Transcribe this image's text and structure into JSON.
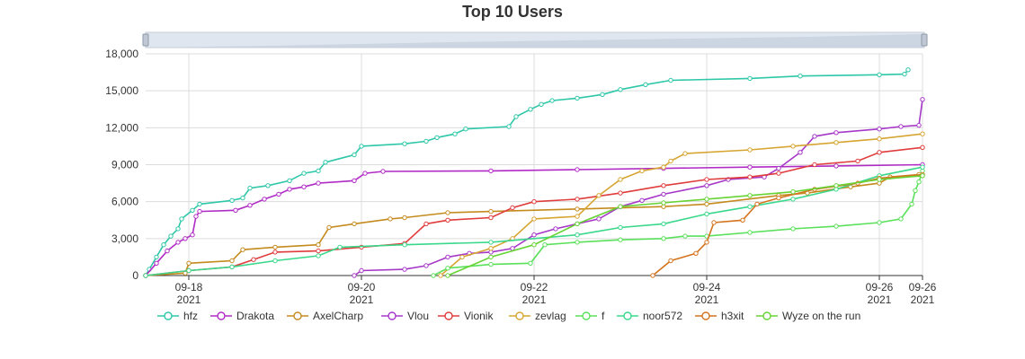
{
  "chart_data": {
    "type": "line",
    "title": "Top 10 Users",
    "xlabel": "",
    "ylabel": "",
    "x_axis_type": "time",
    "xlim": [
      "2021-09-17T12:00",
      "2021-09-26T12:00"
    ],
    "ylim": [
      0,
      18000
    ],
    "y_ticks": [
      0,
      3000,
      6000,
      9000,
      12000,
      15000,
      18000
    ],
    "y_tick_labels": [
      "0",
      "3,000",
      "6,000",
      "9,000",
      "12,000",
      "15,000",
      "18,000"
    ],
    "x_ticks": [
      {
        "at": "2021-09-18T00:00",
        "label": "09-18",
        "year": "2021"
      },
      {
        "at": "2021-09-20T00:00",
        "label": "09-20",
        "year": "2021"
      },
      {
        "at": "2021-09-22T00:00",
        "label": "09-22",
        "year": "2021"
      },
      {
        "at": "2021-09-24T00:00",
        "label": "09-24",
        "year": "2021"
      },
      {
        "at": "2021-09-26T00:00",
        "label": "09-26",
        "year": "2021"
      },
      {
        "at": "2021-09-26T12:00",
        "label": "09-26",
        "year": "2021"
      }
    ],
    "grid": true,
    "legend_position": "bottom",
    "has_zoom_slider": true,
    "series": [
      {
        "name": "hfz",
        "color": "#2ec7a8",
        "points": [
          [
            "2021-09-17T12:00",
            0
          ],
          [
            "2021-09-17T13:00",
            500
          ],
          [
            "2021-09-17T15:00",
            1500
          ],
          [
            "2021-09-17T17:00",
            2500
          ],
          [
            "2021-09-17T19:00",
            3200
          ],
          [
            "2021-09-17T21:00",
            3800
          ],
          [
            "2021-09-17T22:00",
            4600
          ],
          [
            "2021-09-18T01:00",
            5300
          ],
          [
            "2021-09-18T03:00",
            5800
          ],
          [
            "2021-09-18T12:00",
            6100
          ],
          [
            "2021-09-18T15:00",
            6300
          ],
          [
            "2021-09-18T17:00",
            7100
          ],
          [
            "2021-09-18T22:00",
            7300
          ],
          [
            "2021-09-19T04:00",
            7700
          ],
          [
            "2021-09-19T08:00",
            8300
          ],
          [
            "2021-09-19T12:00",
            8500
          ],
          [
            "2021-09-19T14:00",
            9200
          ],
          [
            "2021-09-19T22:00",
            9800
          ],
          [
            "2021-09-20T00:00",
            10500
          ],
          [
            "2021-09-20T12:00",
            10700
          ],
          [
            "2021-09-20T18:00",
            10900
          ],
          [
            "2021-09-20T21:00",
            11200
          ],
          [
            "2021-09-21T02:00",
            11500
          ],
          [
            "2021-09-21T05:00",
            11900
          ],
          [
            "2021-09-21T17:00",
            12100
          ],
          [
            "2021-09-21T19:00",
            12900
          ],
          [
            "2021-09-21T23:00",
            13500
          ],
          [
            "2021-09-22T02:00",
            13900
          ],
          [
            "2021-09-22T05:00",
            14200
          ],
          [
            "2021-09-22T12:00",
            14400
          ],
          [
            "2021-09-22T19:00",
            14700
          ],
          [
            "2021-09-23T00:00",
            15100
          ],
          [
            "2021-09-23T07:00",
            15500
          ],
          [
            "2021-09-23T14:00",
            15850
          ],
          [
            "2021-09-24T12:00",
            16000
          ],
          [
            "2021-09-25T02:00",
            16200
          ],
          [
            "2021-09-26T00:00",
            16300
          ],
          [
            "2021-09-26T07:00",
            16350
          ],
          [
            "2021-09-26T08:00",
            16700
          ]
        ]
      },
      {
        "name": "Drakota",
        "color": "#b02bc5",
        "points": [
          [
            "2021-09-17T12:00",
            0
          ],
          [
            "2021-09-17T15:00",
            1000
          ],
          [
            "2021-09-17T18:00",
            2000
          ],
          [
            "2021-09-17T21:00",
            2700
          ],
          [
            "2021-09-17T23:00",
            3000
          ],
          [
            "2021-09-18T01:00",
            3300
          ],
          [
            "2021-09-18T02:00",
            4800
          ],
          [
            "2021-09-18T03:00",
            5200
          ],
          [
            "2021-09-18T13:00",
            5300
          ],
          [
            "2021-09-18T17:00",
            5700
          ],
          [
            "2021-09-18T21:00",
            6200
          ],
          [
            "2021-09-19T01:00",
            6600
          ],
          [
            "2021-09-19T04:00",
            7000
          ],
          [
            "2021-09-19T08:00",
            7200
          ],
          [
            "2021-09-19T12:00",
            7500
          ],
          [
            "2021-09-19T22:00",
            7700
          ],
          [
            "2021-09-20T01:00",
            8300
          ],
          [
            "2021-09-20T06:00",
            8450
          ],
          [
            "2021-09-21T12:00",
            8500
          ],
          [
            "2021-09-22T12:00",
            8600
          ],
          [
            "2021-09-23T12:00",
            8700
          ],
          [
            "2021-09-24T12:00",
            8800
          ],
          [
            "2021-09-25T12:00",
            8900
          ],
          [
            "2021-09-26T12:00",
            9000
          ]
        ]
      },
      {
        "name": "AxelCharp",
        "color": "#c48b1e",
        "points": [
          [
            "2021-09-17T12:00",
            0
          ],
          [
            "2021-09-17T23:00",
            200
          ],
          [
            "2021-09-18T00:00",
            1000
          ],
          [
            "2021-09-18T12:00",
            1200
          ],
          [
            "2021-09-18T15:00",
            2100
          ],
          [
            "2021-09-19T00:00",
            2300
          ],
          [
            "2021-09-19T12:00",
            2500
          ],
          [
            "2021-09-19T15:00",
            3900
          ],
          [
            "2021-09-19T22:00",
            4200
          ],
          [
            "2021-09-20T08:00",
            4600
          ],
          [
            "2021-09-20T12:00",
            4700
          ],
          [
            "2021-09-21T00:00",
            5100
          ],
          [
            "2021-09-21T12:00",
            5200
          ],
          [
            "2021-09-22T12:00",
            5400
          ],
          [
            "2021-09-23T12:00",
            5600
          ],
          [
            "2021-09-24T00:00",
            5800
          ],
          [
            "2021-09-24T20:00",
            6500
          ],
          [
            "2021-09-25T04:00",
            6700
          ],
          [
            "2021-09-25T16:00",
            7200
          ],
          [
            "2021-09-26T00:00",
            7500
          ],
          [
            "2021-09-26T03:00",
            8000
          ],
          [
            "2021-09-26T11:00",
            8200
          ]
        ]
      },
      {
        "name": "Vlou",
        "color": "#a638c8",
        "points": [
          [
            "2021-09-19T22:00",
            0
          ],
          [
            "2021-09-20T00:00",
            400
          ],
          [
            "2021-09-20T12:00",
            500
          ],
          [
            "2021-09-20T18:00",
            800
          ],
          [
            "2021-09-21T00:00",
            1500
          ],
          [
            "2021-09-21T06:00",
            1800
          ],
          [
            "2021-09-21T12:00",
            1900
          ],
          [
            "2021-09-21T18:00",
            2200
          ],
          [
            "2021-09-22T00:00",
            3300
          ],
          [
            "2021-09-22T06:00",
            3800
          ],
          [
            "2021-09-22T12:00",
            4200
          ],
          [
            "2021-09-22T18:00",
            4600
          ],
          [
            "2021-09-23T00:00",
            5600
          ],
          [
            "2021-09-23T06:00",
            6100
          ],
          [
            "2021-09-23T12:00",
            6600
          ],
          [
            "2021-09-24T00:00",
            7300
          ],
          [
            "2021-09-24T06:00",
            7800
          ],
          [
            "2021-09-24T16:00",
            8000
          ],
          [
            "2021-09-24T20:00",
            8700
          ],
          [
            "2021-09-25T02:00",
            10000
          ],
          [
            "2021-09-25T06:00",
            11300
          ],
          [
            "2021-09-25T12:00",
            11600
          ],
          [
            "2021-09-26T00:00",
            11900
          ],
          [
            "2021-09-26T06:00",
            12100
          ],
          [
            "2021-09-26T11:00",
            12200
          ],
          [
            "2021-09-26T12:00",
            14300
          ]
        ]
      },
      {
        "name": "Vionik",
        "color": "#e03c3c",
        "points": [
          [
            "2021-09-17T12:00",
            0
          ],
          [
            "2021-09-18T00:00",
            400
          ],
          [
            "2021-09-18T12:00",
            700
          ],
          [
            "2021-09-18T18:00",
            1300
          ],
          [
            "2021-09-19T00:00",
            1900
          ],
          [
            "2021-09-19T12:00",
            2000
          ],
          [
            "2021-09-20T00:00",
            2300
          ],
          [
            "2021-09-20T12:00",
            2600
          ],
          [
            "2021-09-20T18:00",
            4200
          ],
          [
            "2021-09-21T00:00",
            4500
          ],
          [
            "2021-09-21T12:00",
            4700
          ],
          [
            "2021-09-21T18:00",
            5500
          ],
          [
            "2021-09-22T00:00",
            6000
          ],
          [
            "2021-09-22T12:00",
            6200
          ],
          [
            "2021-09-23T00:00",
            6700
          ],
          [
            "2021-09-23T12:00",
            7300
          ],
          [
            "2021-09-24T00:00",
            7800
          ],
          [
            "2021-09-24T12:00",
            8000
          ],
          [
            "2021-09-24T20:00",
            8300
          ],
          [
            "2021-09-25T06:00",
            9000
          ],
          [
            "2021-09-25T18:00",
            9300
          ],
          [
            "2021-09-26T00:00",
            10000
          ],
          [
            "2021-09-26T12:00",
            10400
          ]
        ]
      },
      {
        "name": "zevlag",
        "color": "#d6a532",
        "points": [
          [
            "2021-09-20T22:00",
            0
          ],
          [
            "2021-09-21T04:00",
            1500
          ],
          [
            "2021-09-21T12:00",
            2200
          ],
          [
            "2021-09-21T18:00",
            3000
          ],
          [
            "2021-09-22T00:00",
            4600
          ],
          [
            "2021-09-22T12:00",
            4800
          ],
          [
            "2021-09-22T18:00",
            6500
          ],
          [
            "2021-09-23T00:00",
            7800
          ],
          [
            "2021-09-23T06:00",
            8500
          ],
          [
            "2021-09-23T12:00",
            8800
          ],
          [
            "2021-09-23T14:00",
            9300
          ],
          [
            "2021-09-23T18:00",
            9900
          ],
          [
            "2021-09-24T12:00",
            10200
          ],
          [
            "2021-09-25T00:00",
            10500
          ],
          [
            "2021-09-25T12:00",
            10800
          ],
          [
            "2021-09-26T00:00",
            11100
          ],
          [
            "2021-09-26T12:00",
            11500
          ]
        ]
      },
      {
        "name": "f",
        "color": "#5ae05a",
        "points": [
          [
            "2021-09-20T20:00",
            0
          ],
          [
            "2021-09-21T00:00",
            600
          ],
          [
            "2021-09-21T12:00",
            900
          ],
          [
            "2021-09-21T23:00",
            1000
          ],
          [
            "2021-09-22T03:00",
            2500
          ],
          [
            "2021-09-22T12:00",
            2700
          ],
          [
            "2021-09-23T00:00",
            2900
          ],
          [
            "2021-09-23T12:00",
            3000
          ],
          [
            "2021-09-23T18:00",
            3200
          ],
          [
            "2021-09-24T00:00",
            3200
          ],
          [
            "2021-09-24T12:00",
            3500
          ],
          [
            "2021-09-25T00:00",
            3800
          ],
          [
            "2021-09-25T12:00",
            4000
          ],
          [
            "2021-09-26T00:00",
            4300
          ],
          [
            "2021-09-26T06:00",
            4600
          ],
          [
            "2021-09-26T09:00",
            5800
          ],
          [
            "2021-09-26T10:00",
            6900
          ],
          [
            "2021-09-26T11:00",
            7600
          ],
          [
            "2021-09-26T12:00",
            8500
          ]
        ]
      },
      {
        "name": "noor572",
        "color": "#3ad88b",
        "points": [
          [
            "2021-09-17T12:00",
            0
          ],
          [
            "2021-09-18T00:00",
            400
          ],
          [
            "2021-09-18T12:00",
            700
          ],
          [
            "2021-09-19T00:00",
            1200
          ],
          [
            "2021-09-19T12:00",
            1600
          ],
          [
            "2021-09-19T18:00",
            2300
          ],
          [
            "2021-09-20T12:00",
            2500
          ],
          [
            "2021-09-21T12:00",
            2700
          ],
          [
            "2021-09-22T12:00",
            3300
          ],
          [
            "2021-09-23T00:00",
            3900
          ],
          [
            "2021-09-23T12:00",
            4200
          ],
          [
            "2021-09-24T00:00",
            5000
          ],
          [
            "2021-09-24T12:00",
            5600
          ],
          [
            "2021-09-25T00:00",
            6200
          ],
          [
            "2021-09-25T12:00",
            7000
          ],
          [
            "2021-09-26T00:00",
            8100
          ],
          [
            "2021-09-26T12:00",
            8800
          ]
        ]
      },
      {
        "name": "h3xit",
        "color": "#d4731e",
        "points": [
          [
            "2021-09-23T09:00",
            0
          ],
          [
            "2021-09-23T14:00",
            1200
          ],
          [
            "2021-09-23T21:00",
            1800
          ],
          [
            "2021-09-24T00:00",
            2700
          ],
          [
            "2021-09-24T02:00",
            4300
          ],
          [
            "2021-09-24T10:00",
            4500
          ],
          [
            "2021-09-24T14:00",
            5800
          ],
          [
            "2021-09-24T20:00",
            6300
          ],
          [
            "2021-09-25T06:00",
            7000
          ],
          [
            "2021-09-25T18:00",
            7500
          ],
          [
            "2021-09-26T00:00",
            7900
          ],
          [
            "2021-09-26T12:00",
            8200
          ]
        ]
      },
      {
        "name": "Wyze on the run",
        "color": "#66d434",
        "points": [
          [
            "2021-09-21T00:00",
            0
          ],
          [
            "2021-09-21T12:00",
            1500
          ],
          [
            "2021-09-22T00:00",
            2500
          ],
          [
            "2021-09-22T12:00",
            4200
          ],
          [
            "2021-09-23T00:00",
            5600
          ],
          [
            "2021-09-23T12:00",
            5900
          ],
          [
            "2021-09-24T00:00",
            6200
          ],
          [
            "2021-09-24T12:00",
            6500
          ],
          [
            "2021-09-25T00:00",
            6800
          ],
          [
            "2021-09-25T12:00",
            7300
          ],
          [
            "2021-09-26T00:00",
            7800
          ],
          [
            "2021-09-26T12:00",
            8100
          ]
        ]
      }
    ]
  }
}
